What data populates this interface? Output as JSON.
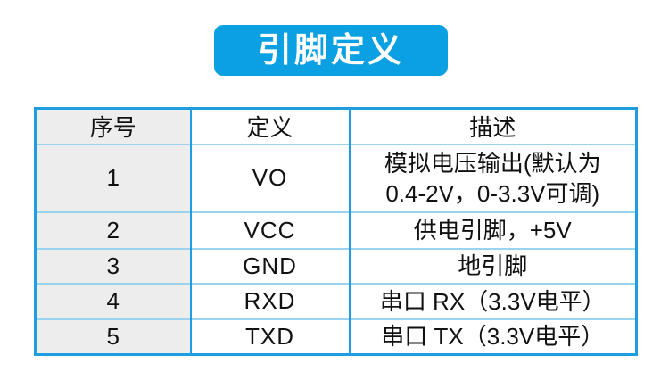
{
  "title_badge": {
    "label": "引脚定义",
    "bg_color": "#0aa0e2",
    "text_color": "#ffffff"
  },
  "table": {
    "headers": [
      "序号",
      "定义",
      "描述"
    ],
    "rows": [
      {
        "no": "1",
        "def": "VO",
        "desc": "模拟电压输出(默认为\n0.4-2V，0-3.3V可调)"
      },
      {
        "no": "2",
        "def": "VCC",
        "desc": "供电引脚，+5V"
      },
      {
        "no": "3",
        "def": "GND",
        "desc": "地引脚"
      },
      {
        "no": "4",
        "def": "RXD",
        "desc": "串口 RX（3.3V电平）"
      },
      {
        "no": "5",
        "def": "TXD",
        "desc": "串口 TX（3.3V电平）"
      }
    ],
    "colors": {
      "outer_border": "#1e9ee0",
      "vertical_line": "#1e9ee0",
      "horizontal_line": "#9bd2f0",
      "first_column_bg": "#ededed",
      "text": "#111111"
    }
  }
}
